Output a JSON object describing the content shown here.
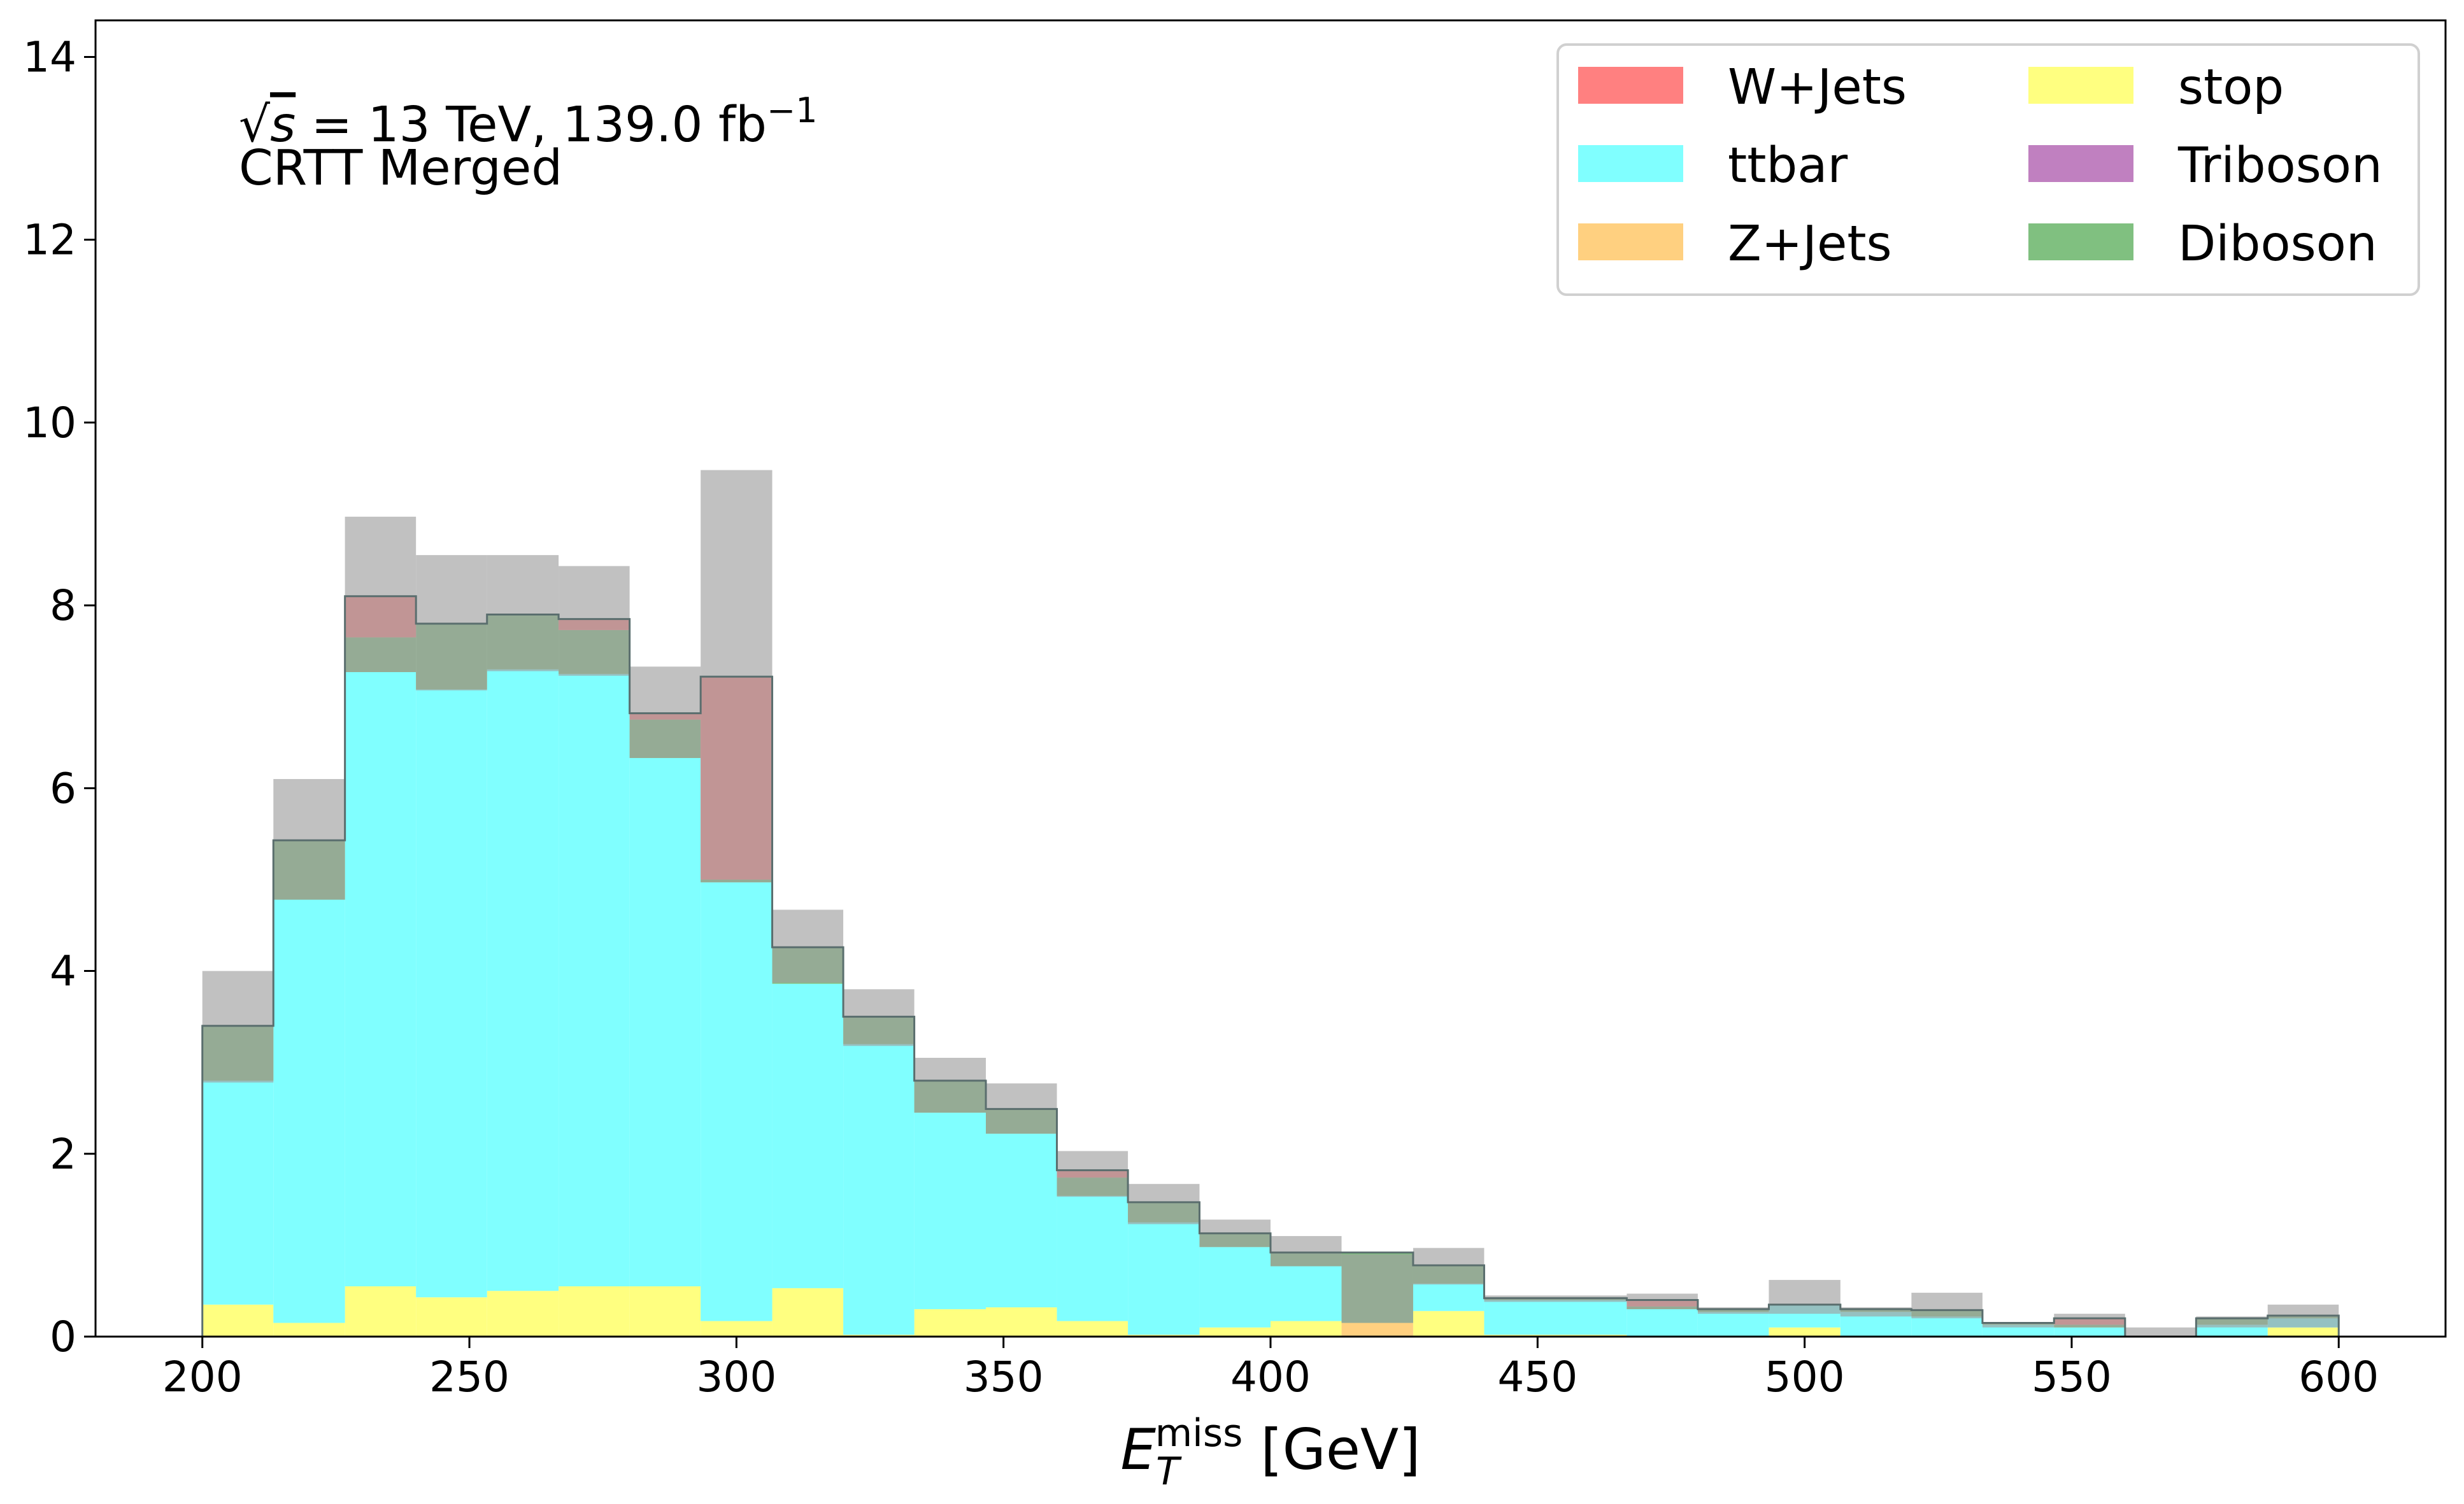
{
  "chart_data": {
    "type": "bar",
    "stacked": true,
    "title": "",
    "annotations": [
      "√s = 13 TeV, 139.0 fb⁻¹",
      "CRTT Merged"
    ],
    "xlabel": "E_T^miss [GeV]",
    "ylabel": "",
    "xlim": [
      180,
      620
    ],
    "ylim": [
      0,
      14.4
    ],
    "xticks": [
      200,
      250,
      300,
      350,
      400,
      450,
      500,
      550,
      600
    ],
    "yticks": [
      0,
      2,
      4,
      6,
      8,
      10,
      12,
      14
    ],
    "grid": false,
    "legend": {
      "position": "top-right",
      "columns": 2
    },
    "bin_edges": [
      200,
      213.3,
      226.7,
      240,
      253.3,
      266.7,
      280,
      293.3,
      306.7,
      320,
      333.3,
      346.7,
      360,
      373.3,
      386.7,
      400,
      413.3,
      426.7,
      440,
      453.3,
      466.7,
      480,
      493.3,
      506.7,
      520,
      533.3,
      546.7,
      560,
      573.3,
      586.7,
      600
    ],
    "series": [
      {
        "name": "stop",
        "color": "#ffff80",
        "values": [
          0.35,
          0.15,
          0.55,
          0.43,
          0.5,
          0.55,
          0.55,
          0.17,
          0.53,
          0.02,
          0.3,
          0.32,
          0.17,
          0.02,
          0.1,
          0.17,
          0.0,
          0.28,
          0.02,
          0.02,
          0.0,
          0.0,
          0.1,
          0.0,
          0.0,
          0.0,
          0.0,
          0.0,
          0.0,
          0.1
        ]
      },
      {
        "name": "ttbar",
        "color": "#80ffff",
        "values": [
          2.45,
          4.63,
          6.72,
          6.65,
          6.8,
          6.7,
          5.78,
          4.8,
          3.33,
          3.18,
          2.15,
          1.9,
          1.37,
          1.23,
          0.88,
          0.6,
          0.0,
          0.3,
          0.38,
          0.38,
          0.3,
          0.27,
          0.25,
          0.27,
          0.22,
          0.13,
          0.1,
          0.0,
          0.13,
          0.1
        ]
      },
      {
        "name": "Z+Jets",
        "color": "#ffd080",
        "values": [
          0.0,
          0.0,
          0.0,
          0.0,
          0.0,
          0.0,
          0.0,
          0.0,
          0.0,
          0.0,
          0.0,
          0.0,
          0.0,
          0.0,
          0.0,
          0.0,
          0.15,
          0.0,
          0.0,
          0.0,
          0.0,
          0.0,
          0.0,
          0.0,
          0.0,
          0.0,
          0.0,
          0.0,
          0.0,
          0.0
        ]
      },
      {
        "name": "Diboson",
        "color": "#80c080",
        "values": [
          0.6,
          0.65,
          0.38,
          0.72,
          0.6,
          0.48,
          0.42,
          0.03,
          0.4,
          0.3,
          0.35,
          0.27,
          0.2,
          0.22,
          0.15,
          0.15,
          0.77,
          0.2,
          0.02,
          0.02,
          0.03,
          0.03,
          0.0,
          0.03,
          0.07,
          0.02,
          0.03,
          0.0,
          0.07,
          0.03
        ]
      },
      {
        "name": "Triboson",
        "color": "#c080c0",
        "values": [
          0.0,
          0.0,
          0.0,
          0.0,
          0.0,
          0.0,
          0.0,
          0.0,
          0.0,
          0.0,
          0.0,
          0.0,
          0.0,
          0.0,
          0.0,
          0.0,
          0.0,
          0.0,
          0.0,
          0.0,
          0.0,
          0.0,
          0.0,
          0.0,
          0.0,
          0.0,
          0.0,
          0.0,
          0.0,
          0.0
        ]
      },
      {
        "name": "W+Jets",
        "color": "#ff8080",
        "values": [
          0.0,
          0.0,
          0.45,
          0.0,
          0.0,
          0.12,
          0.07,
          2.22,
          0.0,
          0.0,
          0.0,
          0.0,
          0.08,
          0.0,
          0.0,
          0.0,
          0.0,
          0.0,
          0.0,
          0.0,
          0.07,
          0.0,
          0.0,
          0.0,
          0.0,
          0.0,
          0.07,
          0.0,
          0.0,
          0.0
        ]
      }
    ],
    "uncertainty_band": {
      "color": "#a0a0a0",
      "top": [
        4.0,
        6.1,
        8.97,
        8.55,
        8.55,
        8.43,
        7.33,
        9.48,
        4.67,
        3.8,
        3.05,
        2.77,
        2.03,
        1.67,
        1.28,
        1.1,
        0.9,
        0.97,
        0.45,
        0.45,
        0.47,
        0.32,
        0.62,
        0.32,
        0.48,
        0.15,
        0.25,
        0.1,
        0.22,
        0.35
      ],
      "bottom": [
        2.78,
        4.78,
        7.27,
        7.07,
        7.28,
        7.23,
        6.33,
        4.97,
        3.87,
        3.18,
        2.45,
        2.22,
        1.53,
        1.23,
        0.98,
        0.77,
        0.15,
        0.57,
        0.38,
        0.38,
        0.3,
        0.25,
        0.25,
        0.22,
        0.2,
        0.1,
        0.1,
        0.0,
        0.1,
        0.1
      ]
    }
  }
}
